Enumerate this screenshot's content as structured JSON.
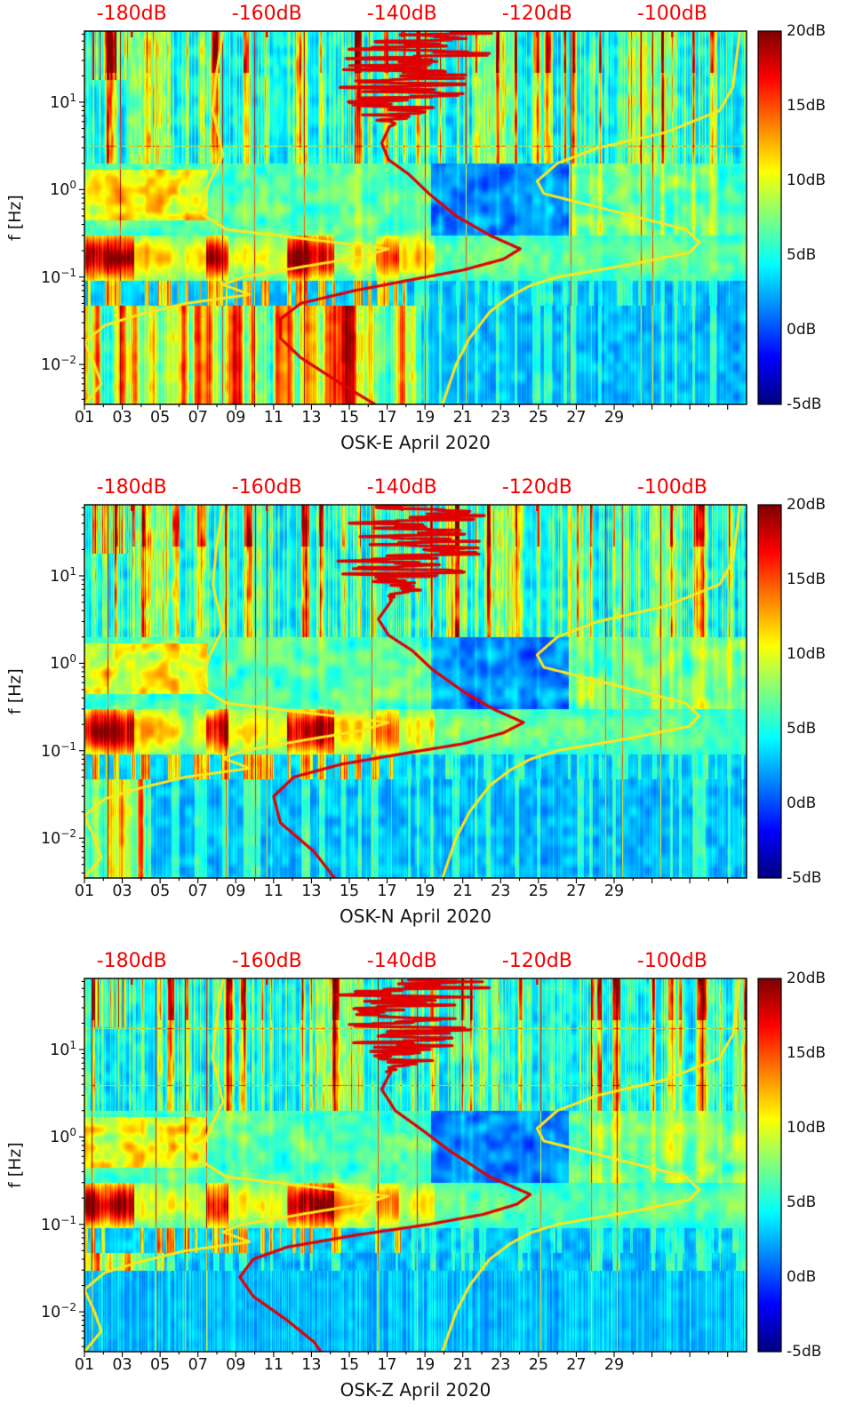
{
  "figure": {
    "background": "#ffffff",
    "top_axis_color": "#f30000",
    "text_color": "#151515",
    "panel_count": 3
  },
  "top_axis": {
    "tick_labels": [
      "-180dB",
      "-160dB",
      "-140dB",
      "-120dB",
      "-100dB"
    ],
    "tick_values": [
      -180,
      -160,
      -140,
      -120,
      -100
    ],
    "domain_db": [
      -187,
      -89
    ]
  },
  "y_axis": {
    "label": "f [Hz]",
    "scale": "log",
    "domain_hz": [
      0.0035,
      65
    ],
    "tick_base": "10",
    "tick_exponents": [
      1,
      0,
      -1,
      -2
    ],
    "tick_labels_text": [
      "10^1",
      "10^0",
      "10^-1",
      "10^-2"
    ]
  },
  "x_axis": {
    "tick_labels": [
      "01",
      "03",
      "05",
      "07",
      "09",
      "11",
      "13",
      "15",
      "17",
      "19",
      "21",
      "23",
      "25",
      "27",
      "29"
    ],
    "tick_values": [
      1,
      3,
      5,
      7,
      9,
      11,
      13,
      15,
      17,
      19,
      21,
      23,
      25,
      27,
      29
    ],
    "domain_days": [
      1,
      36
    ]
  },
  "colorbar": {
    "min_db": -5,
    "max_db": 20,
    "tick_labels": [
      "20dB",
      "15dB",
      "10dB",
      "5dB",
      "0dB",
      "-5dB"
    ],
    "tick_values": [
      20,
      15,
      10,
      5,
      0,
      -5
    ],
    "colormap": "jet"
  },
  "noise_models": {
    "nlnm": {
      "name": "Peterson low-noise model",
      "color": "#ffe61a",
      "points_f_db": [
        [
          65,
          -166.5
        ],
        [
          20,
          -167.5
        ],
        [
          8,
          -168
        ],
        [
          2.5,
          -166.5
        ],
        [
          1.2,
          -168.5
        ],
        [
          0.55,
          -170
        ],
        [
          0.35,
          -166
        ],
        [
          0.26,
          -152
        ],
        [
          0.21,
          -142
        ],
        [
          0.17,
          -146
        ],
        [
          0.13,
          -155
        ],
        [
          0.1,
          -163.5
        ],
        [
          0.082,
          -166.5
        ],
        [
          0.063,
          -162.5
        ],
        [
          0.05,
          -172
        ],
        [
          0.037,
          -179
        ],
        [
          0.028,
          -184
        ],
        [
          0.018,
          -187
        ],
        [
          0.01,
          -185.5
        ],
        [
          0.006,
          -184.5
        ],
        [
          0.0035,
          -187
        ]
      ]
    },
    "nhnm": {
      "name": "Peterson high-noise model",
      "color": "#ffe61a",
      "points_f_db": [
        [
          65,
          -90
        ],
        [
          15,
          -91
        ],
        [
          8,
          -93
        ],
        [
          4.5,
          -101
        ],
        [
          3.0,
          -111
        ],
        [
          2.0,
          -117
        ],
        [
          1.25,
          -120
        ],
        [
          0.9,
          -119
        ],
        [
          0.55,
          -108
        ],
        [
          0.35,
          -98
        ],
        [
          0.25,
          -96
        ],
        [
          0.19,
          -97.5
        ],
        [
          0.14,
          -106
        ],
        [
          0.1,
          -117
        ],
        [
          0.08,
          -121
        ],
        [
          0.06,
          -124
        ],
        [
          0.04,
          -127
        ],
        [
          0.02,
          -130
        ],
        [
          0.01,
          -132
        ],
        [
          0.0035,
          -134
        ]
      ]
    }
  },
  "chart_data": [
    {
      "type": "heatmap",
      "station": "OSK-E",
      "xlabel": "OSK-E April 2020",
      "ylabel": "f [Hz]",
      "x_unit": "day of April 2020",
      "y_unit": "frequency, Hz, log scale 0.0035-65",
      "z_unit": "relative spectral power dB, -5 to 20, jet colormap",
      "overlays": {
        "median_psd": {
          "color": "#e00000",
          "points_f_db": [
            [
              65,
              -137
            ],
            [
              28,
              -139
            ],
            [
              12,
              -141
            ],
            [
              6,
              -141.5
            ],
            [
              3.4,
              -143
            ],
            [
              2.2,
              -142
            ],
            [
              1.5,
              -139
            ],
            [
              0.9,
              -136
            ],
            [
              0.5,
              -132
            ],
            [
              0.3,
              -127
            ],
            [
              0.21,
              -122.5
            ],
            [
              0.16,
              -125
            ],
            [
              0.12,
              -131
            ],
            [
              0.095,
              -138
            ],
            [
              0.07,
              -147
            ],
            [
              0.05,
              -155
            ],
            [
              0.033,
              -158
            ],
            [
              0.02,
              -158
            ],
            [
              0.012,
              -155
            ],
            [
              0.006,
              -149
            ],
            [
              0.0035,
              -144
            ]
          ]
        }
      }
    },
    {
      "type": "heatmap",
      "station": "OSK-N",
      "xlabel": "OSK-N April 2020",
      "ylabel": "f [Hz]",
      "x_unit": "day of April 2020",
      "y_unit": "frequency, Hz, log scale 0.0035-65",
      "z_unit": "relative spectral power dB, -5 to 20, jet colormap",
      "overlays": {
        "median_psd": {
          "color": "#e00000",
          "points_f_db": [
            [
              65,
              -136
            ],
            [
              30,
              -138
            ],
            [
              13,
              -140
            ],
            [
              6,
              -141
            ],
            [
              3.2,
              -143.5
            ],
            [
              2.1,
              -142
            ],
            [
              1.4,
              -138.5
            ],
            [
              0.85,
              -135.5
            ],
            [
              0.48,
              -131
            ],
            [
              0.3,
              -126.5
            ],
            [
              0.21,
              -122
            ],
            [
              0.16,
              -125
            ],
            [
              0.12,
              -131
            ],
            [
              0.095,
              -139
            ],
            [
              0.07,
              -149
            ],
            [
              0.05,
              -156
            ],
            [
              0.03,
              -159
            ],
            [
              0.015,
              -158
            ],
            [
              0.007,
              -153
            ],
            [
              0.0035,
              -150
            ]
          ]
        }
      }
    },
    {
      "type": "heatmap",
      "station": "OSK-Z",
      "xlabel": "OSK-Z April 2020",
      "ylabel": "f [Hz]",
      "x_unit": "day of April 2020",
      "y_unit": "frequency, Hz, log scale 0.0035-65",
      "z_unit": "relative spectral power dB, -5 to 20, jet colormap",
      "overlays": {
        "median_psd": {
          "color": "#e00000",
          "points_f_db": [
            [
              65,
              -136
            ],
            [
              30,
              -138
            ],
            [
              14,
              -140
            ],
            [
              7,
              -141
            ],
            [
              3.5,
              -143
            ],
            [
              2.0,
              -141
            ],
            [
              1.2,
              -137
            ],
            [
              0.7,
              -133
            ],
            [
              0.35,
              -127
            ],
            [
              0.22,
              -121
            ],
            [
              0.17,
              -123
            ],
            [
              0.13,
              -128
            ],
            [
              0.1,
              -136
            ],
            [
              0.075,
              -147
            ],
            [
              0.055,
              -157
            ],
            [
              0.04,
              -162
            ],
            [
              0.025,
              -164
            ],
            [
              0.015,
              -162
            ],
            [
              0.008,
              -157
            ],
            [
              0.0045,
              -153
            ],
            [
              0.0035,
              -152
            ]
          ]
        }
      }
    }
  ]
}
